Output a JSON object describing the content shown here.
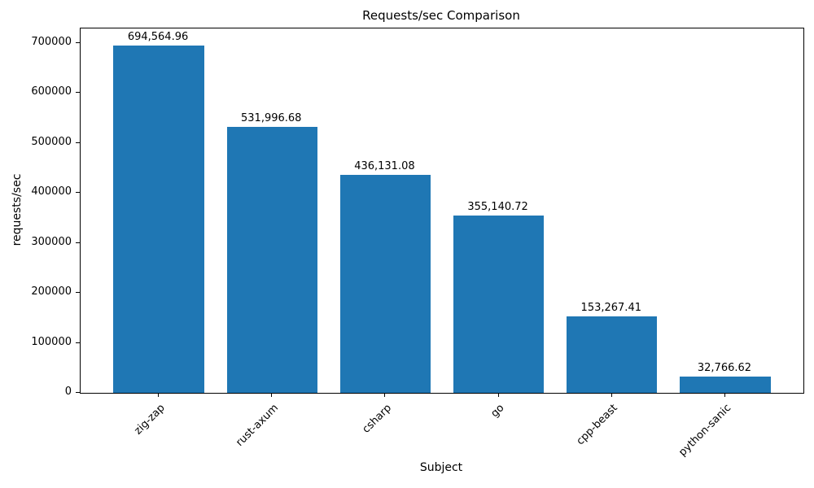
{
  "chart_data": {
    "type": "bar",
    "title": "Requests/sec Comparison",
    "xlabel": "Subject",
    "ylabel": "requests/sec",
    "categories": [
      "zig-zap",
      "rust-axum",
      "csharp",
      "go",
      "cpp-beast",
      "python-sanic"
    ],
    "values": [
      694564.96,
      531996.68,
      436131.08,
      355140.72,
      153267.41,
      32766.62
    ],
    "value_labels": [
      "694,564.96",
      "531,996.68",
      "436,131.08",
      "355,140.72",
      "153,267.41",
      "32,766.62"
    ],
    "bar_color": "#1f77b4",
    "ylim": [
      0,
      729293
    ],
    "yticks": [
      0,
      100000,
      200000,
      300000,
      400000,
      500000,
      600000,
      700000
    ],
    "ytick_labels": [
      "0",
      "100000",
      "200000",
      "300000",
      "400000",
      "500000",
      "600000",
      "700000"
    ],
    "xtick_rotation_deg": 45,
    "grid": false,
    "legend_position": "none"
  }
}
